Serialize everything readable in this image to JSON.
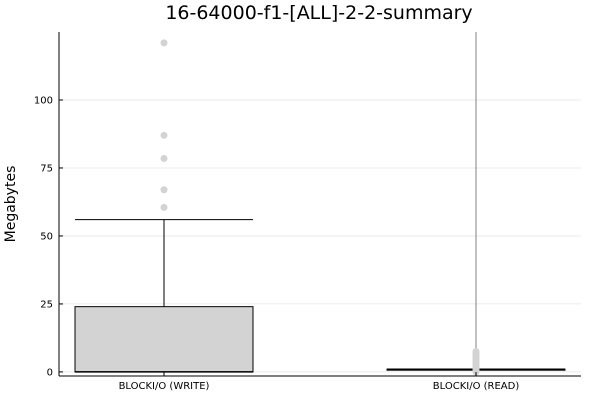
{
  "chart_data": {
    "type": "box",
    "title": "16-64000-f1-[ALL]-2-2-summary",
    "xlabel": "",
    "ylabel": "Megabytes",
    "ylim": [
      -1.5,
      125
    ],
    "yticks": [
      0,
      25,
      50,
      75,
      100
    ],
    "grid": true,
    "legend": "none",
    "categories": [
      "BLOCKI/O (WRITE)",
      "BLOCKI/O (READ)"
    ],
    "boxes": [
      {
        "category": "BLOCKI/O (WRITE)",
        "whisker_low": 0,
        "q1": 0,
        "median": 0,
        "q3": 24,
        "whisker_high": 56,
        "outliers": [
          60.5,
          67,
          78.5,
          87,
          121
        ]
      },
      {
        "category": "BLOCKI/O (READ)",
        "whisker_low": 0,
        "q1": 1,
        "median": 1,
        "q3": 1,
        "whisker_high": 125,
        "outliers": [
          0,
          0.5,
          1,
          1.5,
          2,
          2.5,
          3,
          3.5,
          4,
          4.5,
          5,
          5.5,
          6,
          6.5,
          7,
          7.5
        ]
      }
    ],
    "colors": {
      "box_fill": "#d3d3d3",
      "box_stroke": "#000000",
      "whisker_write": "#000000",
      "whisker_read": "#808080",
      "outlier": "#d3d3d3",
      "grid": "#ebebeb",
      "axis": "#000000"
    }
  }
}
